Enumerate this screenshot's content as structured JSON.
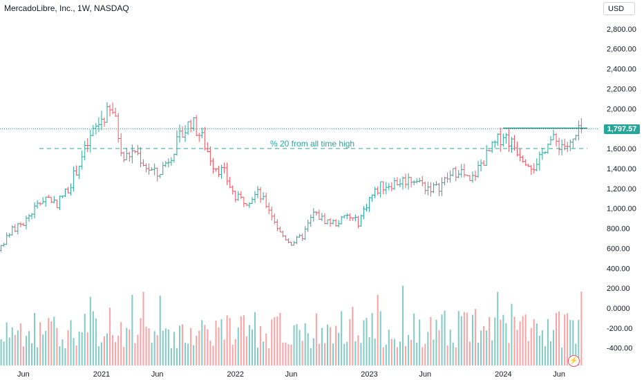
{
  "header": {
    "title": "MercadoLibre, Inc., 1W, NASDAQ",
    "currency": "USD"
  },
  "price_badge": "1,797.57",
  "annotation": "% 20 from all time high",
  "colors": {
    "up": "#26a69a",
    "down": "#f7525f",
    "up_volume": "#80cbc4",
    "down_volume": "#faa1a4"
  },
  "chart_data": {
    "type": "ohlc-weekly-with-volume",
    "title": "MercadoLibre, Inc., 1W, NASDAQ",
    "ylim": [
      -500,
      2950
    ],
    "y_ticks": [
      "2,800.00",
      "2,600.00",
      "2,400.00",
      "2,200.00",
      "2,000.00",
      "1,800.00",
      "1,600.00",
      "1,400.00",
      "1,200.00",
      "1,000.00",
      "800.00",
      "600.00",
      "400.00",
      "200.00",
      "0.0000",
      "-200.00",
      "-400.00"
    ],
    "y_tick_values": [
      2800,
      2600,
      2400,
      2200,
      2000,
      1800,
      1600,
      1400,
      1200,
      1000,
      800,
      600,
      400,
      200,
      0,
      -200,
      -400
    ],
    "x_ticks": [
      "Jun",
      "2021",
      "Jun",
      "2022",
      "Jun",
      "2023",
      "Jun",
      "2024",
      "Jun"
    ],
    "x_tick_dates": [
      "2020-06",
      "2021-01",
      "2021-06",
      "2022-01",
      "2022-06",
      "2023-01",
      "2023-06",
      "2024-01",
      "2024-06"
    ],
    "last_price": 1797.57,
    "reference_level": 1600,
    "annotation": "% 20 from all time high",
    "price_path": [
      [
        "2020-03",
        470
      ],
      [
        "2020-04",
        620
      ],
      [
        "2020-05",
        780
      ],
      [
        "2020-06",
        850
      ],
      [
        "2020-07",
        1000
      ],
      [
        "2020-08",
        1120
      ],
      [
        "2020-09",
        1050
      ],
      [
        "2020-10",
        1200
      ],
      [
        "2020-11",
        1450
      ],
      [
        "2020-12",
        1700
      ],
      [
        "2021-01",
        1900
      ],
      [
        "2021-02",
        1980
      ],
      [
        "2021-03",
        1500
      ],
      [
        "2021-04",
        1580
      ],
      [
        "2021-05",
        1420
      ],
      [
        "2021-06",
        1330
      ],
      [
        "2021-07",
        1500
      ],
      [
        "2021-08",
        1700
      ],
      [
        "2021-09",
        1880
      ],
      [
        "2021-10",
        1700
      ],
      [
        "2021-11",
        1450
      ],
      [
        "2021-12",
        1350
      ],
      [
        "2022-01",
        1100
      ],
      [
        "2022-02",
        1080
      ],
      [
        "2022-03",
        1150
      ],
      [
        "2022-04",
        1000
      ],
      [
        "2022-05",
        750
      ],
      [
        "2022-06",
        650
      ],
      [
        "2022-07",
        720
      ],
      [
        "2022-08",
        950
      ],
      [
        "2022-09",
        880
      ],
      [
        "2022-10",
        850
      ],
      [
        "2022-11",
        920
      ],
      [
        "2022-12",
        860
      ],
      [
        "2023-01",
        1100
      ],
      [
        "2023-02",
        1220
      ],
      [
        "2023-03",
        1250
      ],
      [
        "2023-04",
        1280
      ],
      [
        "2023-05",
        1300
      ],
      [
        "2023-06",
        1220
      ],
      [
        "2023-07",
        1200
      ],
      [
        "2023-08",
        1300
      ],
      [
        "2023-09",
        1400
      ],
      [
        "2023-10",
        1250
      ],
      [
        "2023-11",
        1450
      ],
      [
        "2023-12",
        1600
      ],
      [
        "2024-01",
        1750
      ],
      [
        "2024-02",
        1620
      ],
      [
        "2024-03",
        1500
      ],
      [
        "2024-04",
        1400
      ],
      [
        "2024-05",
        1700
      ],
      [
        "2024-06",
        1650
      ],
      [
        "2024-07",
        1620
      ],
      [
        "2024-08",
        1798
      ]
    ],
    "volume_note": "weekly volume bars plotted on the same price scale (axis labels printed as shown)"
  }
}
